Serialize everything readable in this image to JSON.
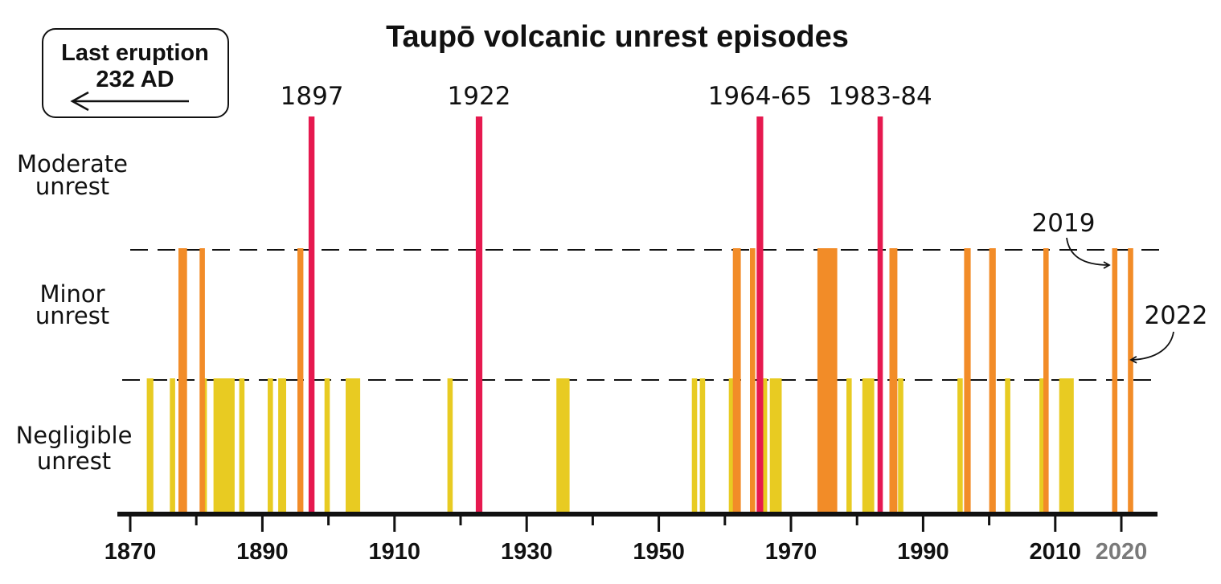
{
  "chart_data": {
    "type": "bar",
    "title": "Taupō volcanic unrest episodes",
    "xlabel": "",
    "ylabel": "",
    "xlim": [
      1868,
      2024
    ],
    "x_ticks_major": [
      1870,
      1890,
      1910,
      1930,
      1950,
      1970,
      1990,
      2010,
      2020
    ],
    "x_ticks_minor": [
      1880,
      1900,
      1920,
      1940,
      1960,
      1980,
      2000
    ],
    "levels": [
      "Negligible unrest",
      "Minor unrest",
      "Moderate unrest"
    ],
    "level_labels": [
      {
        "line1": "Negligible",
        "line2": "unrest"
      },
      {
        "line1": "Minor",
        "line2": "unrest"
      },
      {
        "line1": "Moderate",
        "line2": "unrest"
      }
    ],
    "level_colors": {
      "Negligible unrest": "#E8CB22",
      "Minor unrest": "#F28C28",
      "Moderate unrest": "#E6194F"
    },
    "series": [
      {
        "name": "Negligible unrest",
        "episodes": [
          [
            1872.5,
            1873.5
          ],
          [
            1876,
            1876.8
          ],
          [
            1880.8,
            1881.6
          ],
          [
            1882.6,
            1885.8
          ],
          [
            1886.5,
            1887.3
          ],
          [
            1890.8,
            1891.6
          ],
          [
            1892.4,
            1893.6
          ],
          [
            1899.4,
            1900.2
          ],
          [
            1902.6,
            1904.8
          ],
          [
            1918,
            1918.8
          ],
          [
            1934.5,
            1936.5
          ],
          [
            1955,
            1955.8
          ],
          [
            1956.2,
            1957
          ],
          [
            1960.6,
            1961.4
          ],
          [
            1965.6,
            1966.4
          ],
          [
            1966.8,
            1968.6
          ],
          [
            1978.4,
            1979.2
          ],
          [
            1980.8,
            1982.6
          ],
          [
            1986.2,
            1987
          ],
          [
            1995.2,
            1996
          ],
          [
            2002.4,
            2003.2
          ],
          [
            2007.6,
            2008.4
          ],
          [
            2010.6,
            2012.8
          ]
        ]
      },
      {
        "name": "Minor unrest",
        "episodes": [
          [
            1877.3,
            1878.6
          ],
          [
            1880.5,
            1881.3
          ],
          [
            1895.3,
            1896.2
          ],
          [
            1961.2,
            1962.4
          ],
          [
            1963.8,
            1964.6
          ],
          [
            1974,
            1977
          ],
          [
            1984.9,
            1986.1
          ],
          [
            1996.2,
            1997.2
          ],
          [
            2000,
            2001
          ],
          [
            2008.2,
            2009
          ],
          [
            2018.6,
            2019.4
          ],
          [
            2021,
            2021.8
          ]
        ]
      },
      {
        "name": "Moderate unrest",
        "episodes": [
          [
            1897,
            1897.9
          ],
          [
            1922.3,
            1923.3
          ],
          [
            1964.8,
            1965.8
          ],
          [
            1983.1,
            1983.9
          ]
        ]
      }
    ],
    "event_labels": [
      {
        "text": "1897",
        "x": 1897.5
      },
      {
        "text": "1922",
        "x": 1922.8
      },
      {
        "text": "1964-65",
        "x": 1965.3
      },
      {
        "text": "1983-84",
        "x": 1983.5
      }
    ],
    "grid": "dashed threshold lines between levels",
    "legend": "none"
  },
  "callouts": {
    "last_eruption_line1": "Last eruption",
    "last_eruption_line2": "232 AD",
    "annotation_2019": "2019",
    "annotation_2022": "2022"
  },
  "colors": {
    "axis": "#111111",
    "grey_tick": "#7a7a7a",
    "negligible": "#E8CB22",
    "minor": "#F28C28",
    "moderate": "#E6194F"
  }
}
